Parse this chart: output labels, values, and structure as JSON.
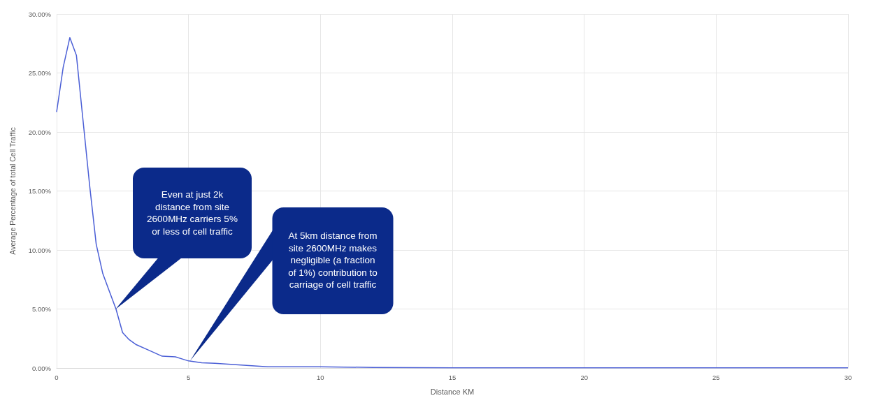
{
  "chart_data": {
    "type": "line",
    "xlabel": "Distance KM",
    "ylabel": "Average Percentage of total Cell Traffic",
    "x": [
      0,
      0.25,
      0.5,
      0.75,
      1,
      1.25,
      1.5,
      1.75,
      2,
      2.25,
      2.5,
      2.75,
      3,
      3.5,
      4,
      4.5,
      5,
      5.5,
      6,
      7,
      8,
      10,
      12,
      15,
      20,
      25,
      30
    ],
    "series": [
      {
        "color": "#4b5fd6",
        "values": [
          21.7,
          25.5,
          28,
          26.5,
          21,
          15.5,
          10.5,
          8,
          6.5,
          5,
          3,
          2.4,
          2,
          1.5,
          1,
          0.95,
          0.6,
          0.45,
          0.4,
          0.25,
          0.1,
          0.1,
          0.05,
          0.02,
          0.01,
          0.01,
          0.01
        ]
      }
    ],
    "xlim": [
      0,
      30
    ],
    "xticks": [
      0,
      5,
      10,
      15,
      20,
      25,
      30
    ],
    "ylim": [
      0,
      30
    ],
    "yticks": [
      {
        "value": 0,
        "label": "0.00%"
      },
      {
        "value": 5,
        "label": "5.00%"
      },
      {
        "value": 10,
        "label": "10.00%"
      },
      {
        "value": 15,
        "label": "15.00%"
      },
      {
        "value": 20,
        "label": "20.00%"
      },
      {
        "value": 25,
        "label": "25.00%"
      },
      {
        "value": 30,
        "label": "30.00%"
      }
    ],
    "grid": true,
    "marker": "none",
    "line_style": "solid",
    "annotations": [
      "Even at just 2k distance from site 2600MHz carriers 5% or less of cell traffic",
      "At 5km distance from site 2600MHz makes negligible (a fraction of 1%) contribution to carriage of cell traffic"
    ]
  }
}
